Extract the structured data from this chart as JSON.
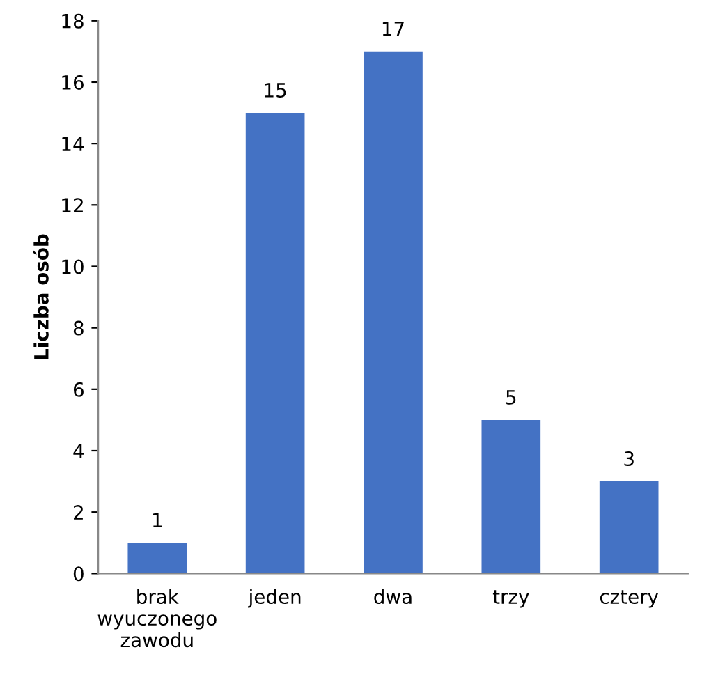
{
  "chart_data": {
    "type": "bar",
    "ylabel": "Liczba osób",
    "categories": [
      "brak wyuczonego zawodu",
      "jeden",
      "dwa",
      "trzy",
      "cztery"
    ],
    "values": [
      1,
      15,
      17,
      5,
      3
    ],
    "color": "#4472c4",
    "ylim": [
      0,
      18
    ],
    "yticks": [
      0,
      2,
      4,
      6,
      8,
      10,
      12,
      14,
      16,
      18
    ],
    "grid": false,
    "data_labels": true
  }
}
